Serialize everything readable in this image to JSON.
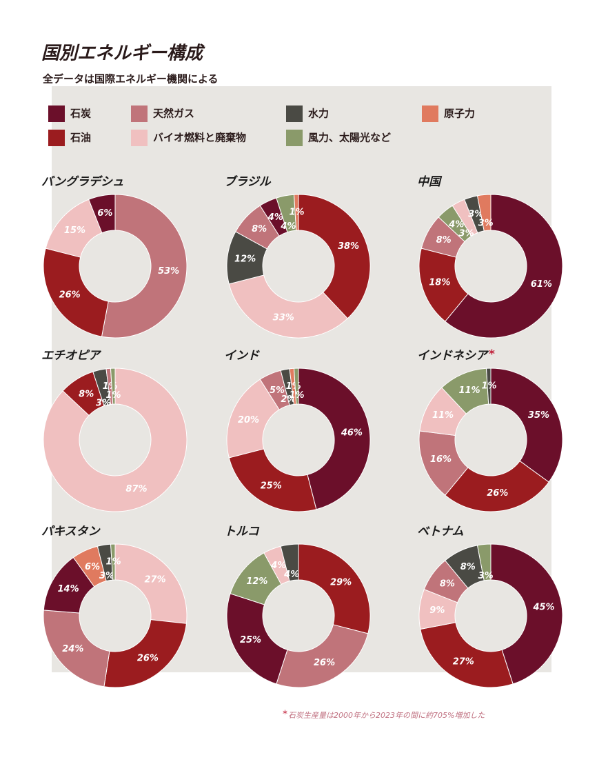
{
  "title": "国別エネルギー構成",
  "subtitle": "全データは国際エネルギー機関による",
  "legend": [
    {
      "name": "石炭",
      "color": "#6b0f2a"
    },
    {
      "name": "天然ガス",
      "color": "#c0747a"
    },
    {
      "name": "水力",
      "color": "#4a4a44"
    },
    {
      "name": "原子力",
      "color": "#e07a5f"
    },
    {
      "name": "石油",
      "color": "#9b1c1f"
    },
    {
      "name": "バイオ燃料と廃棄物",
      "color": "#f0c0c0"
    },
    {
      "name": "風力、太陽光など",
      "color": "#8a9a6a"
    }
  ],
  "footnote_mark": "*",
  "footnote": "石炭生産量は2000年から2023年の間に約705%増加した",
  "chart_data": [
    {
      "type": "pie",
      "title": "バングラデシュ",
      "categories": [
        "天然ガス",
        "石油",
        "バイオ燃料と廃棄物",
        "石炭"
      ],
      "values": [
        53,
        26,
        15,
        6
      ],
      "value_labels": [
        "53%",
        "26%",
        "15%",
        "6%"
      ]
    },
    {
      "type": "pie",
      "title": "ブラジル",
      "categories": [
        "石油",
        "バイオ燃料と廃棄物",
        "水力",
        "天然ガス",
        "石炭",
        "風力、太陽光など",
        "原子力"
      ],
      "values": [
        38,
        33,
        12,
        8,
        4,
        4,
        1
      ],
      "value_labels": [
        "38%",
        "33%",
        "12%",
        "8%",
        "4%",
        "4%",
        "1%"
      ]
    },
    {
      "type": "pie",
      "title": "中国",
      "categories": [
        "石炭",
        "石油",
        "天然ガス",
        "風力、太陽光など",
        "バイオ燃料と廃棄物",
        "水力",
        "原子力"
      ],
      "values": [
        61,
        18,
        8,
        4,
        3,
        3,
        3
      ],
      "value_labels": [
        "61%",
        "18%",
        "8%",
        "4%",
        "3%",
        "3%",
        "3%"
      ]
    },
    {
      "type": "pie",
      "title": "エチオピア",
      "categories": [
        "バイオ燃料と廃棄物",
        "石油",
        "水力",
        "天然ガス",
        "風力、太陽光など"
      ],
      "values": [
        87,
        8,
        3,
        1,
        1
      ],
      "value_labels": [
        "87%",
        "8%",
        "3%",
        "1%",
        "1%"
      ]
    },
    {
      "type": "pie",
      "title": "インド",
      "categories": [
        "石炭",
        "石油",
        "バイオ燃料と廃棄物",
        "天然ガス",
        "水力",
        "原子力",
        "風力、太陽光など"
      ],
      "values": [
        46,
        25,
        20,
        5,
        2,
        1,
        1
      ],
      "value_labels": [
        "46%",
        "25%",
        "20%",
        "5%",
        "2%",
        "1%",
        "1%"
      ]
    },
    {
      "type": "pie",
      "title": "インドネシア",
      "title_mark": "*",
      "categories": [
        "石炭",
        "石油",
        "天然ガス",
        "バイオ燃料と廃棄物",
        "風力、太陽光など",
        "水力"
      ],
      "values": [
        35,
        26,
        16,
        11,
        11,
        1
      ],
      "value_labels": [
        "35%",
        "26%",
        "16%",
        "11%",
        "11%",
        "1%"
      ]
    },
    {
      "type": "pie",
      "title": "パキスタン",
      "categories": [
        "バイオ燃料と廃棄物",
        "石油",
        "天然ガス",
        "石炭",
        "原子力",
        "水力",
        "風力、太陽光など"
      ],
      "values": [
        27,
        26,
        24,
        14,
        6,
        3,
        1
      ],
      "value_labels": [
        "27%",
        "26%",
        "24%",
        "14%",
        "6%",
        "3%",
        "1%"
      ]
    },
    {
      "type": "pie",
      "title": "トルコ",
      "categories": [
        "石油",
        "天然ガス",
        "石炭",
        "風力、太陽光など",
        "バイオ燃料と廃棄物",
        "水力"
      ],
      "values": [
        29,
        26,
        25,
        12,
        4,
        4
      ],
      "value_labels": [
        "29%",
        "26%",
        "25%",
        "12%",
        "4%",
        "4%"
      ]
    },
    {
      "type": "pie",
      "title": "ベトナム",
      "categories": [
        "石炭",
        "石油",
        "バイオ燃料と廃棄物",
        "天然ガス",
        "水力",
        "風力、太陽光など"
      ],
      "values": [
        45,
        27,
        9,
        8,
        8,
        3
      ],
      "value_labels": [
        "45%",
        "27%",
        "9%",
        "8%",
        "8%",
        "3%"
      ]
    }
  ]
}
